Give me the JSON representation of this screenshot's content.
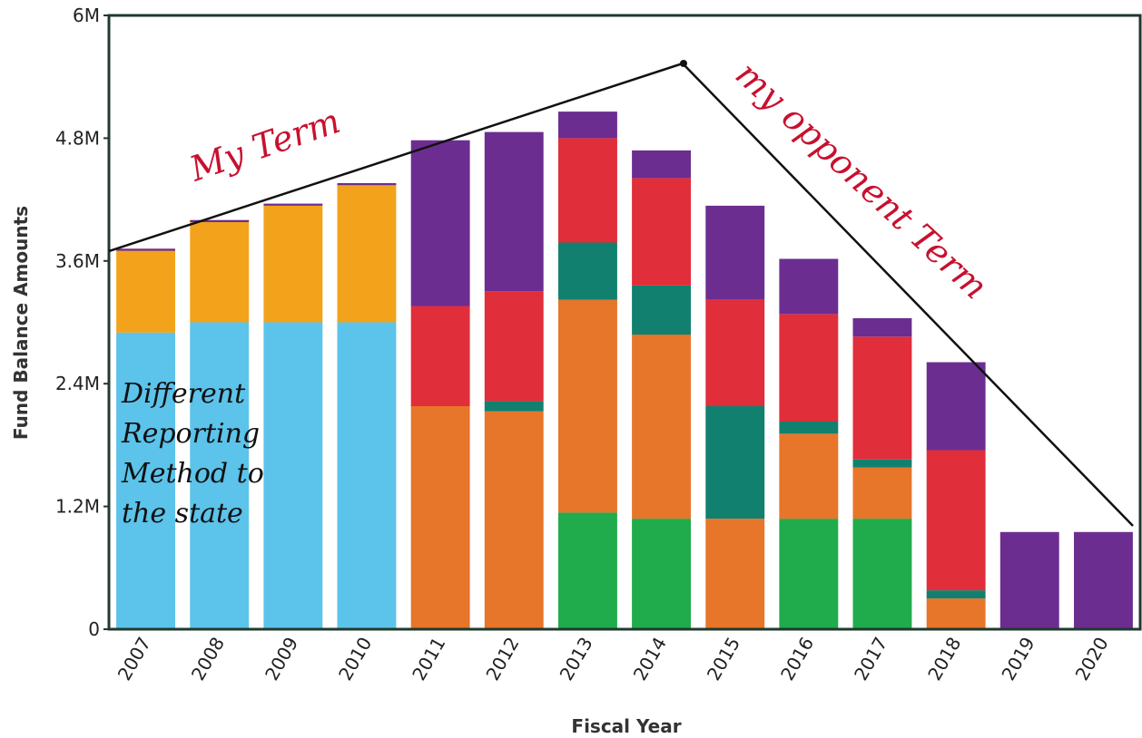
{
  "chart_data": {
    "type": "bar",
    "stacked": true,
    "title": "",
    "xlabel": "Fiscal Year",
    "ylabel": "Fund Balance Amounts",
    "ylim": [
      0,
      6
    ],
    "y_unit": "M",
    "y_ticks": [
      "0",
      "1.2M",
      "2.4M",
      "3.6M",
      "4.8M",
      "6M"
    ],
    "grid": false,
    "categories": [
      "2007",
      "2008",
      "2009",
      "2010",
      "2011",
      "2012",
      "2013",
      "2014",
      "2015",
      "2016",
      "2017",
      "2018",
      "2019",
      "2020"
    ],
    "series": [
      {
        "color": "#5cc3ea",
        "values": [
          2.9,
          3.0,
          3.0,
          3.0,
          0,
          0,
          0,
          0,
          0,
          0,
          0,
          0,
          0,
          0
        ]
      },
      {
        "color": "#20ab4c",
        "values": [
          0,
          0,
          0,
          0,
          0,
          0,
          1.14,
          1.08,
          0,
          1.08,
          1.08,
          0,
          0,
          0
        ]
      },
      {
        "color": "#e7752a",
        "values": [
          0,
          0,
          0,
          0,
          2.18,
          2.13,
          2.08,
          1.8,
          1.08,
          0.83,
          0.5,
          0.3,
          0,
          0
        ]
      },
      {
        "color": "#12806f",
        "values": [
          0,
          0,
          0,
          0,
          0,
          0.1,
          0.56,
          0.48,
          1.1,
          0.12,
          0.08,
          0.08,
          0,
          0
        ]
      },
      {
        "color": "#e02e3a",
        "values": [
          0,
          0,
          0,
          0,
          0.98,
          1.07,
          1.02,
          1.05,
          1.04,
          1.05,
          1.2,
          1.37,
          0,
          0
        ]
      },
      {
        "color": "#f2a31b",
        "values": [
          0.8,
          0.98,
          1.14,
          1.34,
          0,
          0,
          0,
          0,
          0,
          0,
          0,
          0,
          0,
          0
        ]
      },
      {
        "color": "#6c2d91",
        "values": [
          0.02,
          0.02,
          0.02,
          0.02,
          1.62,
          1.56,
          0.26,
          0.27,
          0.92,
          0.54,
          0.18,
          0.86,
          0.95,
          0.95
        ]
      }
    ],
    "annotations": [
      {
        "text": "My Term",
        "color": "#c8102e"
      },
      {
        "text": "my opponent Term",
        "color": "#c8102e"
      },
      {
        "lines": [
          "Different",
          "Reporting",
          "Method to",
          "the state"
        ],
        "color": "#111111"
      }
    ]
  }
}
